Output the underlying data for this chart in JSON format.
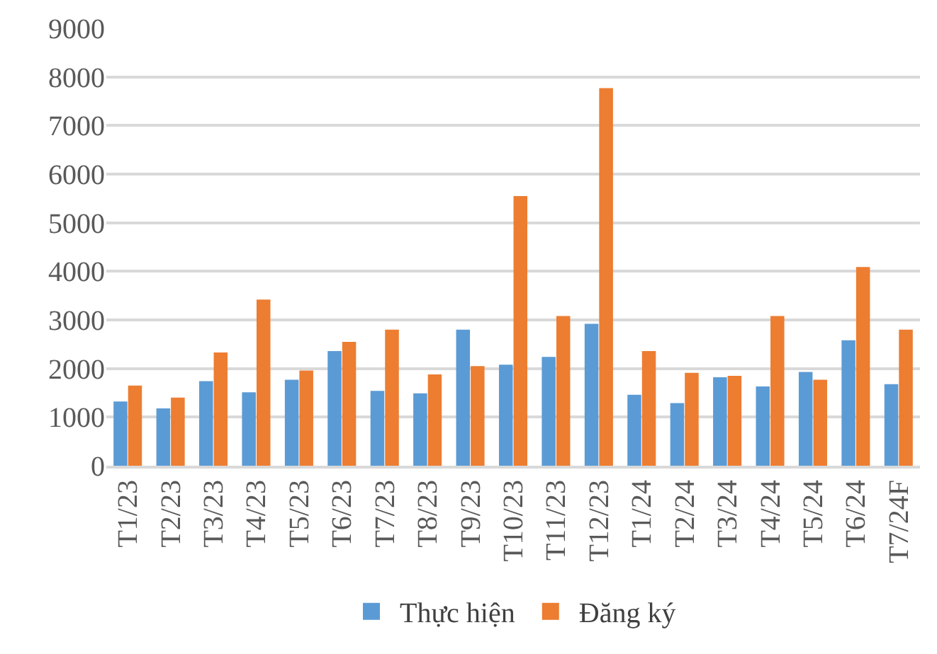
{
  "chart_data": {
    "type": "bar",
    "categories": [
      "T1/23",
      "T2/23",
      "T3/23",
      "T4/23",
      "T5/23",
      "T6/23",
      "T7/23",
      "T8/23",
      "T9/23",
      "T10/23",
      "T11/23",
      "T12/23",
      "T1/24",
      "T2/24",
      "T3/24",
      "T4/24",
      "T5/24",
      "T6/24",
      "T7/24F"
    ],
    "series": [
      {
        "name": "Thực hiện",
        "color": "#5b9bd5",
        "values": [
          1320,
          1180,
          1740,
          1510,
          1770,
          2360,
          1540,
          1490,
          2800,
          2080,
          2240,
          2920,
          1460,
          1290,
          1820,
          1630,
          1930,
          2580,
          1680
        ]
      },
      {
        "name": "Đăng ký",
        "color": "#ed7d31",
        "values": [
          1650,
          1400,
          2330,
          3420,
          1960,
          2550,
          2800,
          1880,
          2050,
          5550,
          3080,
          7770,
          2360,
          1910,
          1850,
          3080,
          1770,
          4090,
          2800
        ]
      }
    ],
    "ylim": [
      0,
      9000
    ],
    "yticks": [
      0,
      1000,
      2000,
      3000,
      4000,
      5000,
      6000,
      7000,
      8000,
      9000
    ],
    "grid": "y",
    "legend": "bottom"
  }
}
